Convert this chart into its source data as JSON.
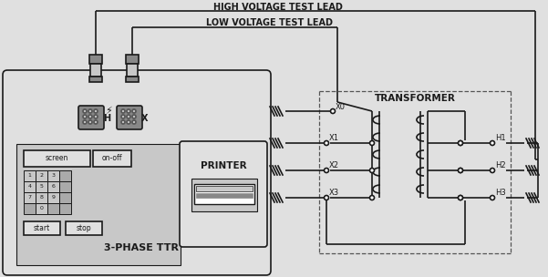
{
  "bg": "#e0e0e0",
  "fg": "#1a1a1a",
  "white": "#ffffff",
  "gray_light": "#c8c8c8",
  "gray_med": "#888888",
  "gray_dark": "#555555",
  "high_v_label": "HIGH VOLTAGE TEST LEAD",
  "low_v_label": "LOW VOLTAGE TEST LEAD",
  "transformer_label": "TRANSFORMER",
  "device_label": "3-PHASE TTR",
  "printer_label": "PRINTER",
  "screen_label": "screen",
  "onoff_label": "on-off",
  "start_label": "start",
  "stop_label": "stop",
  "H_label": "H",
  "X_label": "X",
  "x_labels": [
    "X0",
    "X1",
    "X2",
    "X3"
  ],
  "h_labels": [
    "H1",
    "H2",
    "H3"
  ],
  "keypad_rows": [
    [
      "1",
      "2",
      "3",
      ""
    ],
    [
      "4",
      "5",
      "6",
      ""
    ],
    [
      "7",
      "8",
      "9",
      ""
    ],
    [
      "",
      "0",
      "",
      ""
    ]
  ]
}
